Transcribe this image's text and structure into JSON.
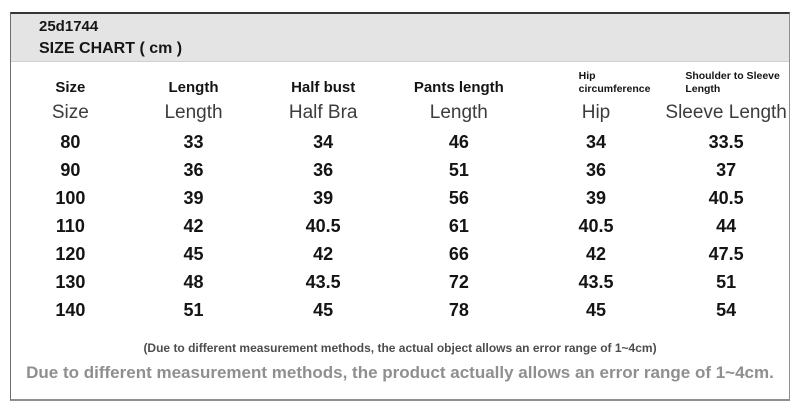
{
  "header": {
    "product_code": "25d1744",
    "title": "SIZE CHART ( cm )"
  },
  "table": {
    "columns_en": [
      "Size",
      "Length",
      "Half bust",
      "Pants length",
      "Hip circumference",
      "Shoulder to Sleeve Length"
    ],
    "columns_sub": [
      "Size",
      "Length",
      "Half Bra",
      "Length",
      "Hip",
      "Sleeve Length"
    ],
    "rows": [
      [
        "80",
        "33",
        "34",
        "46",
        "34",
        "33.5"
      ],
      [
        "90",
        "36",
        "36",
        "51",
        "36",
        "37"
      ],
      [
        "100",
        "39",
        "39",
        "56",
        "39",
        "40.5"
      ],
      [
        "110",
        "42",
        "40.5",
        "61",
        "40.5",
        "44"
      ],
      [
        "120",
        "45",
        "42",
        "66",
        "42",
        "47.5"
      ],
      [
        "130",
        "48",
        "43.5",
        "72",
        "43.5",
        "51"
      ],
      [
        "140",
        "51",
        "45",
        "78",
        "45",
        "54"
      ]
    ]
  },
  "footnotes": {
    "small": "(Due to different measurement methods, the actual object allows an error range of 1~4cm)",
    "large": "Due to different measurement methods, the product actually allows an error range of 1~4cm."
  },
  "colors": {
    "band_background": "#e4e4e4",
    "border": "#6e6e6e",
    "text": "#141414",
    "subheader_text": "#3c3c3c",
    "footnote_small": "#4d4d4d",
    "footnote_large": "#8f8f8f"
  }
}
